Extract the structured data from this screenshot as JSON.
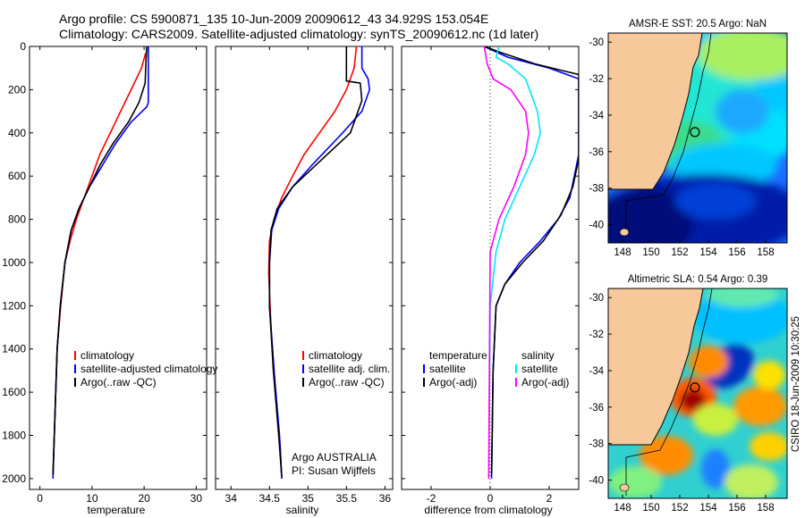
{
  "header": {
    "line1": "Argo profile: CS 5900871_135 10-Jun-2009 20090612_43 34.929S 153.054E",
    "line2": "Climatology: CARS2009. Satellite-adjusted climatology: synTS_20090612.nc (1d later)"
  },
  "colors": {
    "climatology": "#ff0000",
    "satellite": "#0000ff",
    "argo": "#000000",
    "satellite_salinity": "#00e5ff",
    "argo_adj_salinity": "#ff00ff",
    "land": "#f6c89a"
  },
  "credits": {
    "owner": "Argo AUSTRALIA",
    "pi": "PI: Susan Wijffels",
    "timestamp": "CSIRO 18-Jun-2009 10:30:25"
  },
  "chart_data": [
    {
      "type": "line",
      "xlabel": "temperature",
      "ylabel": "",
      "xlim": [
        -2,
        32
      ],
      "ylim": [
        0,
        2050
      ],
      "y_reversed": true,
      "x_ticks": [
        0,
        10,
        20,
        30
      ],
      "y_ticks": [
        0,
        200,
        400,
        600,
        800,
        1000,
        1200,
        1400,
        1600,
        1800,
        2000
      ],
      "legend": [
        "climatology",
        "satellite-adjusted climatology",
        "Argo(..raw -QC)"
      ],
      "legend_position": "bottom",
      "series": [
        {
          "name": "climatology",
          "color": "#ff0000",
          "x": [
            20.3,
            19.5,
            17.5,
            15.5,
            13.5,
            11.5,
            10.0,
            8.5,
            7.0,
            5.8,
            4.8,
            4.0,
            3.3,
            2.9,
            2.5
          ],
          "y": [
            30,
            100,
            200,
            300,
            400,
            500,
            600,
            700,
            800,
            900,
            1000,
            1200,
            1400,
            1700,
            2000
          ]
        },
        {
          "name": "satellite-adjusted climatology",
          "color": "#0000ff",
          "x": [
            20.8,
            20.8,
            20.8,
            20.5,
            17.5,
            14.5,
            12.0,
            9.5,
            7.5,
            6.0,
            4.8,
            3.9,
            3.3,
            2.9,
            2.5
          ],
          "y": [
            0,
            150,
            260,
            280,
            350,
            450,
            550,
            650,
            750,
            850,
            1000,
            1200,
            1400,
            1700,
            2000
          ]
        },
        {
          "name": "Argo(..raw -QC)",
          "color": "#000000",
          "x": [
            20.5,
            20.3,
            20.2,
            19.0,
            17.0,
            14.0,
            11.5,
            9.5,
            7.5,
            6.0,
            4.8,
            3.9,
            3.3,
            2.9,
            2.5
          ],
          "y": [
            0,
            100,
            170,
            260,
            350,
            450,
            550,
            650,
            750,
            850,
            1000,
            1200,
            1400,
            1700,
            1980
          ]
        }
      ]
    },
    {
      "type": "line",
      "xlabel": "salinity",
      "ylabel": "",
      "xlim": [
        33.8,
        36.1
      ],
      "ylim": [
        0,
        2050
      ],
      "y_reversed": true,
      "x_ticks": [
        34,
        34.5,
        35,
        35.5,
        36
      ],
      "legend": [
        "climatology",
        "satellite adj. clim.",
        "Argo(..raw -QC)"
      ],
      "legend_position": "bottom",
      "series": [
        {
          "name": "climatology",
          "color": "#ff0000",
          "x": [
            35.63,
            35.6,
            35.5,
            35.35,
            35.15,
            34.95,
            34.8,
            34.66,
            34.56,
            34.5,
            34.49,
            34.52,
            34.58,
            34.64,
            34.66
          ],
          "y": [
            0,
            100,
            200,
            300,
            400,
            500,
            600,
            700,
            800,
            900,
            1050,
            1300,
            1600,
            1850,
            2000
          ]
        },
        {
          "name": "satellite adj. clim.",
          "color": "#0000ff",
          "x": [
            35.7,
            35.7,
            35.78,
            35.8,
            35.7,
            35.45,
            35.05,
            34.8,
            34.62,
            34.53,
            34.5,
            34.5,
            34.56,
            34.63,
            34.66
          ],
          "y": [
            0,
            100,
            150,
            200,
            300,
            400,
            550,
            650,
            750,
            850,
            1000,
            1200,
            1500,
            1800,
            2000
          ]
        },
        {
          "name": "Argo(..raw -QC)",
          "color": "#000000",
          "x": [
            35.5,
            35.5,
            35.5,
            35.68,
            35.7,
            35.55,
            35.1,
            34.8,
            34.6,
            34.52,
            34.5,
            34.5,
            34.55,
            34.62,
            34.66
          ],
          "y": [
            0,
            100,
            160,
            170,
            250,
            400,
            550,
            650,
            750,
            850,
            1000,
            1200,
            1500,
            1800,
            1990
          ]
        }
      ],
      "annotations": [
        "Argo AUSTRALIA",
        "PI: Susan Wijffels"
      ]
    },
    {
      "type": "line",
      "xlabel": "difference from climatology",
      "ylabel": "",
      "xlim": [
        -3,
        3
      ],
      "ylim": [
        0,
        2050
      ],
      "y_reversed": true,
      "x_ticks": [
        -2,
        0,
        2
      ],
      "legend": [
        "temperature",
        "satellite",
        "Argo(-adj)",
        "salinity",
        "satellite",
        "Argo(-adj)"
      ],
      "legend_position": "bottom",
      "series": [
        {
          "name": "satellite",
          "group": "temperature",
          "color": "#0000ff",
          "x": [
            -0.2,
            0.6,
            2.0,
            3.0,
            3.0,
            2.7,
            2.3,
            1.7,
            1.0,
            0.5,
            0.2,
            0.1,
            0.05
          ],
          "y": [
            0,
            50,
            100,
            150,
            500,
            700,
            800,
            900,
            1000,
            1100,
            1200,
            1500,
            2000
          ]
        },
        {
          "name": "Argo(-adj)",
          "group": "temperature",
          "color": "#000000",
          "x": [
            -0.2,
            0.4,
            1.5,
            3.0,
            3.0,
            2.8,
            2.4,
            1.8,
            1.1,
            0.5,
            0.2,
            0.1,
            0.05
          ],
          "y": [
            0,
            30,
            80,
            130,
            520,
            650,
            780,
            900,
            1000,
            1100,
            1200,
            1500,
            1980
          ]
        },
        {
          "name": "satellite",
          "group": "salinity",
          "color": "#00e5ff",
          "x": [
            0.3,
            0.2,
            0.6,
            1.2,
            1.6,
            1.7,
            1.5,
            1.0,
            0.5,
            0.2,
            0.0,
            -0.05
          ],
          "y": [
            0,
            50,
            80,
            150,
            300,
            400,
            500,
            650,
            800,
            950,
            1200,
            2000
          ]
        },
        {
          "name": "Argo(-adj)",
          "group": "salinity",
          "color": "#ff00ff",
          "x": [
            -0.2,
            -0.1,
            0.1,
            0.7,
            1.2,
            1.3,
            1.2,
            0.8,
            0.3,
            0.0,
            -0.05
          ],
          "y": [
            0,
            80,
            150,
            200,
            300,
            400,
            500,
            650,
            800,
            950,
            2000
          ]
        }
      ]
    },
    {
      "type": "heatmap",
      "title": "AMSR-E SST: 20.5 Argo: NaN",
      "x_ticks": [
        148,
        150,
        152,
        154,
        156,
        158
      ],
      "y_ticks": [
        -30,
        -32,
        -34,
        -36,
        -38,
        -40
      ],
      "xlim": [
        147,
        159.5
      ],
      "ylim": [
        -41,
        -29.5
      ],
      "profile_location": [
        153.054,
        -34.929
      ],
      "colormap": "jet"
    },
    {
      "type": "heatmap",
      "title": "Altimetric SLA: 0.54 Argo: 0.39",
      "x_ticks": [
        148,
        150,
        152,
        154,
        156,
        158
      ],
      "y_ticks": [
        -30,
        -32,
        -34,
        -36,
        -38,
        -40
      ],
      "xlim": [
        147,
        159.5
      ],
      "ylim": [
        -41,
        -29.5
      ],
      "profile_location": [
        153.054,
        -34.929
      ],
      "colormap": "jet"
    }
  ]
}
